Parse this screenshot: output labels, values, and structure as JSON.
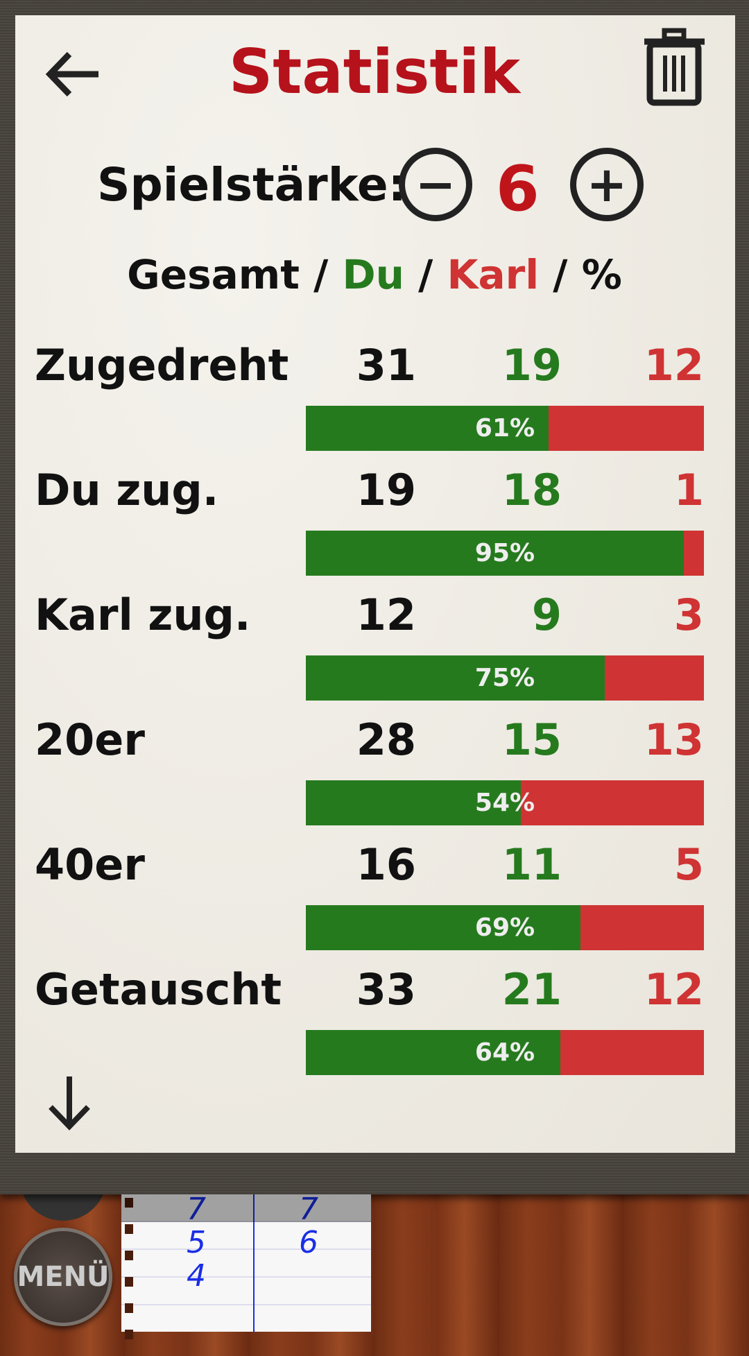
{
  "header": {
    "title": "Statistik",
    "back_icon": "arrow-left-icon",
    "delete_icon": "trash-icon"
  },
  "strength": {
    "label": "Spielstärke:",
    "value": "6",
    "minus": "−",
    "plus": "+"
  },
  "legend": {
    "total": "Gesamt",
    "you": "Du",
    "opponent": "Karl",
    "percent": "%",
    "sep": " / "
  },
  "colors": {
    "green": "#267a1e",
    "red": "#cf3333",
    "title_red": "#b5121b"
  },
  "rows": [
    {
      "label": "Zugedreht",
      "total": "31",
      "you": "19",
      "opponent": "12",
      "percent": 61,
      "percent_label": "61%"
    },
    {
      "label": "Du zug.",
      "total": "19",
      "you": "18",
      "opponent": "1",
      "percent": 95,
      "percent_label": "95%"
    },
    {
      "label": "Karl zug.",
      "total": "12",
      "you": "9",
      "opponent": "3",
      "percent": 75,
      "percent_label": "75%"
    },
    {
      "label": "20er",
      "total": "28",
      "you": "15",
      "opponent": "13",
      "percent": 54,
      "percent_label": "54%"
    },
    {
      "label": "40er",
      "total": "16",
      "you": "11",
      "opponent": "5",
      "percent": 69,
      "percent_label": "69%"
    },
    {
      "label": "Getauscht",
      "total": "33",
      "you": "21",
      "opponent": "12",
      "percent": 64,
      "percent_label": "64%"
    }
  ],
  "scorepad": {
    "left": [
      "7",
      "5",
      "4"
    ],
    "right": [
      "7",
      "6"
    ]
  },
  "menu": {
    "label": "MENÜ"
  }
}
